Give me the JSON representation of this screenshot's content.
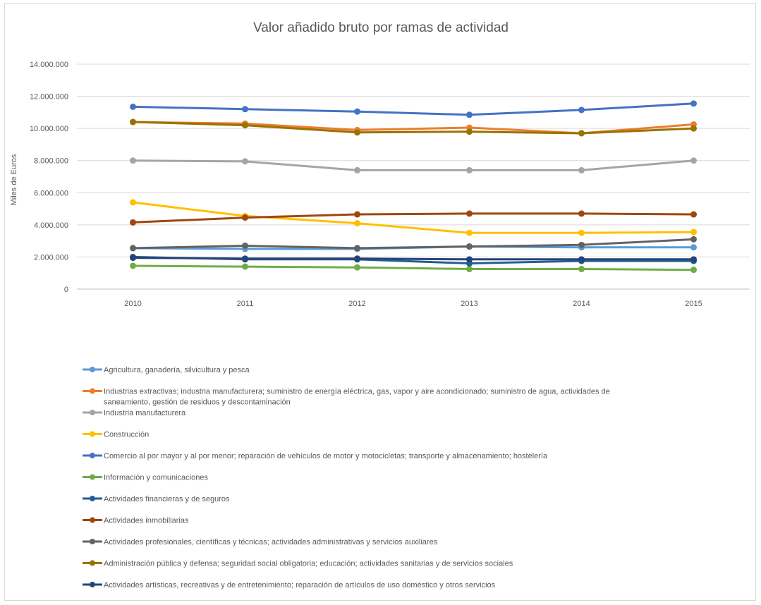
{
  "chart_data": {
    "type": "line",
    "title": "Valor añadido bruto por ramas de actividad",
    "xlabel": "",
    "ylabel": "Miles de Euros",
    "x": [
      "2010",
      "2011",
      "2012",
      "2013",
      "2014",
      "2015"
    ],
    "ylim": [
      0,
      14000000
    ],
    "ytick_values": [
      0,
      2000000,
      4000000,
      6000000,
      8000000,
      10000000,
      12000000,
      14000000
    ],
    "ytick_labels": [
      "0",
      "2.000.000",
      "4.000.000",
      "6.000.000",
      "8.000.000",
      "10.000.000",
      "12.000.000",
      "14.000.000"
    ],
    "grid": true,
    "legend_position": "bottom",
    "series": [
      {
        "name": "Agricultura, ganadería, silvicultura y pesca",
        "legend_lines": [
          "Agricultura, ganadería, silvicultura y pesca"
        ],
        "color": "#5B9BD5",
        "values": [
          2550000,
          2500000,
          2500000,
          2650000,
          2600000,
          2600000
        ]
      },
      {
        "name": "Industrias extractivas; industria manufacturera; suministro de energía eléctrica, gas, vapor y aire acondicionado; suministro de agua, actividades de saneamiento, gestión de residuos y descontaminación",
        "legend_lines": [
          "Industrias extractivas; industria manufacturera; suministro de energía eléctrica, gas, vapor y aire acondicionado; suministro de agua, actividades de",
          "saneamiento, gestión de residuos y descontaminación"
        ],
        "color": "#ED7D31",
        "values": [
          10400000,
          10300000,
          9900000,
          10050000,
          9700000,
          10250000
        ]
      },
      {
        "name": "Industria manufacturera",
        "legend_lines": [
          "Industria manufacturera"
        ],
        "color": "#A5A5A5",
        "values": [
          8000000,
          7950000,
          7400000,
          7400000,
          7400000,
          8000000
        ]
      },
      {
        "name": "Construcción",
        "legend_lines": [
          "Construcción"
        ],
        "color": "#FFC000",
        "values": [
          5400000,
          4550000,
          4100000,
          3500000,
          3500000,
          3550000
        ]
      },
      {
        "name": "Comercio al por mayor y al por menor; reparación de vehículos de motor y motocicletas; transporte y almacenamiento; hostelería",
        "legend_lines": [
          "Comercio al por mayor y al por menor; reparación de vehículos de motor y motocicletas; transporte y almacenamiento; hostelería"
        ],
        "color": "#4472C4",
        "values": [
          11350000,
          11200000,
          11050000,
          10850000,
          11150000,
          11550000
        ]
      },
      {
        "name": "Información y comunicaciones",
        "legend_lines": [
          "Información y comunicaciones"
        ],
        "color": "#70AD47",
        "values": [
          1450000,
          1400000,
          1350000,
          1250000,
          1250000,
          1200000
        ]
      },
      {
        "name": "Actividades financieras y de seguros",
        "legend_lines": [
          "Actividades financieras y de seguros"
        ],
        "color": "#255E91",
        "values": [
          2000000,
          1850000,
          1850000,
          1600000,
          1750000,
          1750000
        ]
      },
      {
        "name": "Actividades inmobiliarias",
        "legend_lines": [
          "Actividades inmobiliarias"
        ],
        "color": "#9E480E",
        "values": [
          4150000,
          4450000,
          4650000,
          4700000,
          4700000,
          4650000
        ]
      },
      {
        "name": "Actividades profesionales, científicas y técnicas; actividades administrativas y servicios auxiliares",
        "legend_lines": [
          "Actividades profesionales, científicas y técnicas; actividades administrativas y servicios auxiliares"
        ],
        "color": "#636363",
        "values": [
          2550000,
          2700000,
          2550000,
          2650000,
          2750000,
          3100000
        ]
      },
      {
        "name": "Administración pública y defensa; seguridad social obligatoria; educación; actividades sanitarias y de servicios sociales",
        "legend_lines": [
          "Administración pública y defensa; seguridad social obligatoria; educación; actividades sanitarias y de servicios sociales"
        ],
        "color": "#997300",
        "values": [
          10400000,
          10200000,
          9750000,
          9800000,
          9700000,
          10000000
        ]
      },
      {
        "name": "Actividades artísticas, recreativas y de entretenimiento; reparación de artículos de uso doméstico y otros servicios",
        "legend_lines": [
          "Actividades artísticas, recreativas y de entretenimiento; reparación de artículos de uso doméstico y otros servicios"
        ],
        "color": "#264478",
        "values": [
          1950000,
          1900000,
          1900000,
          1850000,
          1850000,
          1850000
        ]
      }
    ]
  }
}
